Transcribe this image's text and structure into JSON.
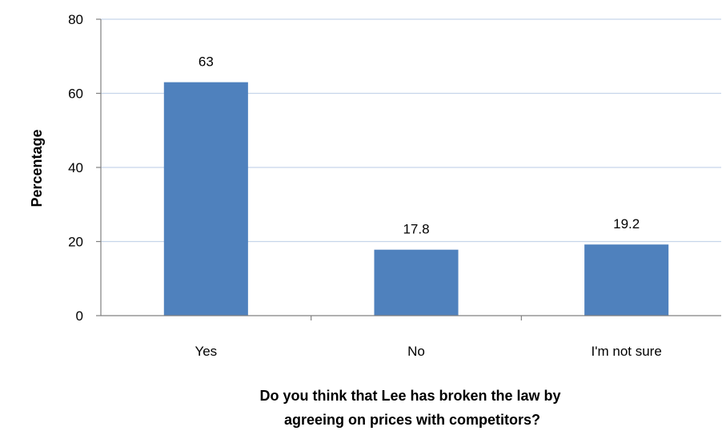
{
  "chart_data": {
    "type": "bar",
    "categories": [
      "Yes",
      "No",
      "I'm not sure"
    ],
    "values": [
      63,
      17.8,
      19.2
    ],
    "value_labels": [
      "63",
      "17.8",
      "19.2"
    ],
    "title": "",
    "xlabel_lines": [
      "Do you think that Lee has broken the law by",
      "agreeing on prices with competitors?"
    ],
    "ylabel": "Percentage",
    "ylim": [
      0,
      80
    ],
    "yticks": [
      "0",
      "20",
      "40",
      "60",
      "80"
    ],
    "grid": true,
    "legend": "none",
    "bar_color": "#4f81bd",
    "grid_color": "#c6d5ea",
    "axis_color": "#808080"
  }
}
